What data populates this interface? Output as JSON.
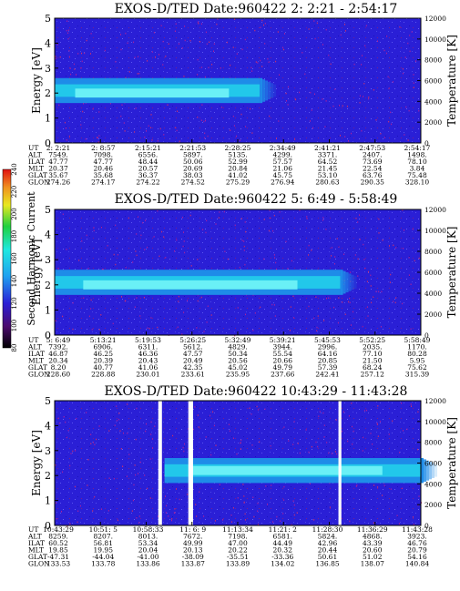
{
  "chart_data": [
    {
      "type": "heatmap",
      "title": "EXOS-D/TED   Date:960422  2: 2:21 - 2:54:17",
      "ylabel": "Energy [eV]",
      "y2label": "Temperature [K]",
      "ylim": [
        0,
        5
      ],
      "y2lim": [
        0,
        12000
      ],
      "yticks": [
        "0",
        "1",
        "2",
        "3",
        "4",
        "5"
      ],
      "y2ticks": [
        "0",
        "2000",
        "4000",
        "6000",
        "8000",
        "10000",
        "12000"
      ],
      "band": {
        "from_frac": 0.0,
        "to_frac": 0.56,
        "low": 1.6,
        "high": 2.6,
        "peak": 2.0
      },
      "ephemeris": {
        "labels": [
          "UT",
          "ALT",
          "ILAT",
          "MLT",
          "GLAT",
          "GLON"
        ],
        "columns": [
          [
            "2: 2:21",
            "7549.",
            "47.77",
            "20.37",
            "35.67",
            "274.26"
          ],
          [
            "2: 8:57",
            "7098.",
            "47.77",
            "20.46",
            "35.68",
            "274.17"
          ],
          [
            "2:15:21",
            "6556.",
            "48.44",
            "20.57",
            "36.37",
            "274.22"
          ],
          [
            "2:21:53",
            "5897.",
            "50.06",
            "20.69",
            "38.03",
            "274.52"
          ],
          [
            "2:28:25",
            "5135.",
            "52.99",
            "20.84",
            "41.02",
            "275.29"
          ],
          [
            "2:34:49",
            "4299.",
            "57.57",
            "21.06",
            "45.75",
            "276.94"
          ],
          [
            "2:41:21",
            "3371.",
            "64.52",
            "21.45",
            "53.10",
            "280.63"
          ],
          [
            "2:47:53",
            "2407.",
            "73.69",
            "22.54",
            "63.76",
            "290.35"
          ],
          [
            "2:54:17",
            "1498.",
            "78.10",
            "3.84",
            "75.48",
            "328.10"
          ]
        ]
      }
    },
    {
      "type": "heatmap",
      "title": "EXOS-D/TED   Date:960422  5: 6:49 - 5:58:49",
      "ylabel": "Energy [eV]",
      "y2label": "Temperature [K]",
      "ylim": [
        0,
        5
      ],
      "y2lim": [
        0,
        12000
      ],
      "yticks": [
        "0",
        "1",
        "2",
        "3",
        "4",
        "5"
      ],
      "y2ticks": [
        "0",
        "2000",
        "4000",
        "6000",
        "8000",
        "10000",
        "12000"
      ],
      "band": {
        "from_frac": 0.0,
        "to_frac": 0.78,
        "low": 1.6,
        "high": 2.6,
        "peak": 2.0
      },
      "ephemeris": {
        "labels": [
          "UT",
          "ALT",
          "ILAT",
          "MLT",
          "GLAT",
          "GLON"
        ],
        "columns": [
          [
            "5: 6:49",
            "7392.",
            "46.87",
            "20.34",
            "8.20",
            "228.60"
          ],
          [
            "5:13:21",
            "6906.",
            "46.25",
            "20.39",
            "40.77",
            "228.88"
          ],
          [
            "5:19:53",
            "6311.",
            "46.36",
            "20.43",
            "41.06",
            "230.01"
          ],
          [
            "5:26:25",
            "5612.",
            "47.57",
            "20.49",
            "42.35",
            "233.61"
          ],
          [
            "5:32:49",
            "4829.",
            "50.34",
            "20.56",
            "45.02",
            "235.95"
          ],
          [
            "5:39:21",
            "3944.",
            "55.54",
            "20.66",
            "49.79",
            "237.66"
          ],
          [
            "5:45:53",
            "2996.",
            "64.16",
            "20.85",
            "57.39",
            "242.41"
          ],
          [
            "5:52:25",
            "2035.",
            "77.10",
            "21.50",
            "68.24",
            "257.12"
          ],
          [
            "5:58:49",
            "1170.",
            "80.28",
            "5.95",
            "75.62",
            "315.39"
          ]
        ]
      },
      "colorbar": {
        "label": "Second Harmonic Current",
        "ticks": [
          "80",
          "100",
          "120",
          "140",
          "160",
          "180",
          "200",
          "220",
          "240"
        ]
      }
    },
    {
      "type": "heatmap",
      "title": "EXOS-D/TED   Date:960422  10:43:29 - 11:43:28",
      "ylabel": "Energy [eV]",
      "y2label": "Temperature [K]",
      "ylim": [
        0,
        5
      ],
      "y2lim": [
        0,
        12000
      ],
      "yticks": [
        "0",
        "1",
        "2",
        "3",
        "4",
        "5"
      ],
      "y2ticks": [
        "0",
        "2000",
        "4000",
        "6000",
        "8000",
        "10000",
        "12000"
      ],
      "band": {
        "from_frac": 0.3,
        "to_frac": 1.0,
        "low": 1.7,
        "high": 2.7,
        "peak": 2.2
      },
      "ephemeris": {
        "labels": [
          "UT",
          "ALT",
          "ILAT",
          "MLT",
          "GLAT",
          "GLON"
        ],
        "columns": [
          [
            "10:43:29",
            "8259.",
            "60.52",
            "19.85",
            "-47.31",
            "133.53"
          ],
          [
            "10:51: 5",
            "8207.",
            "56.81",
            "19.95",
            "-44.04",
            "133.78"
          ],
          [
            "10:58:33",
            "8013.",
            "53.34",
            "20.04",
            "-41.00",
            "133.86"
          ],
          [
            "11: 6: 9",
            "7672.",
            "49.99",
            "20.13",
            "-38.09",
            "133.87"
          ],
          [
            "11:13:34",
            "7198.",
            "47.00",
            "20.22",
            "-35.51",
            "133.89"
          ],
          [
            "11:21: 2",
            "6581.",
            "44.49",
            "20.32",
            "-33.36",
            "134.02"
          ],
          [
            "11:28:30",
            "5824.",
            "42.96",
            "20.44",
            "50.61",
            "136.85"
          ],
          [
            "11:36:29",
            "4868.",
            "43.39",
            "20.60",
            "51.02",
            "138.07"
          ],
          [
            "11:43:28",
            "3923.",
            "46.76",
            "20.79",
            "54.16",
            "140.84"
          ]
        ]
      }
    }
  ]
}
